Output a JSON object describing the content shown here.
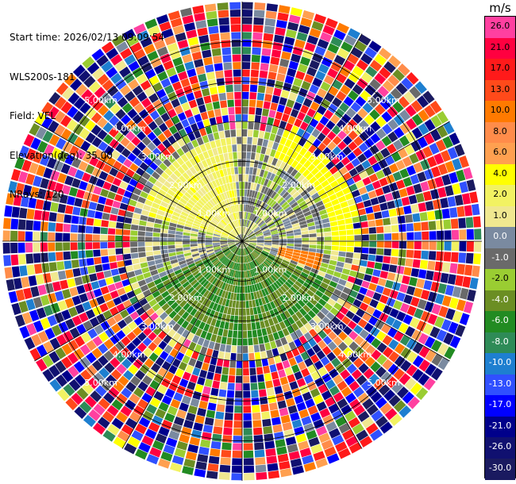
{
  "info": {
    "start_time": "Start time: 2026/02/13 09:09:54",
    "instrument": "WLS200s-181",
    "field": "Field: VEL",
    "elevation": "Elevation(deg): 35.00",
    "nrays": "NRays: 120"
  },
  "chart_data": {
    "type": "heatmap",
    "projection": "polar-ppi",
    "field": "VEL",
    "units": "m/s",
    "rays": 120,
    "elevation_deg": 35.0,
    "max_range_km": 6.0,
    "range_rings_km": [
      1.0,
      2.0,
      3.0,
      4.0,
      5.0
    ],
    "ring_labels": [
      "1.00km",
      "2.00km",
      "3.00km",
      "4.00km",
      "5.00km"
    ],
    "spokes_deg": [
      0,
      30,
      60,
      90,
      120,
      150,
      180,
      210,
      240,
      270,
      300,
      330
    ],
    "regions": [
      {
        "description": "north sector positive",
        "value_ms": 3.0,
        "r_km": [
          0.2,
          2.6
        ],
        "az_deg": [
          285,
          355
        ]
      },
      {
        "description": "northeast orange band",
        "value_ms": 5.0,
        "r_km": [
          2.2,
          3.1
        ],
        "az_deg": [
          20,
          95
        ]
      },
      {
        "description": "east gray",
        "value_ms": 0.0,
        "r_km": [
          0.3,
          2.0
        ],
        "az_deg": [
          60,
          100
        ]
      },
      {
        "description": "east red gust",
        "value_ms": 12.0,
        "r_km": [
          1.0,
          2.0
        ],
        "az_deg": [
          98,
          112
        ]
      },
      {
        "description": "south negative",
        "value_ms": -4.0,
        "r_km": [
          0.2,
          2.6
        ],
        "az_deg": [
          115,
          245
        ]
      },
      {
        "description": "west gray",
        "value_ms": 0.0,
        "r_km": [
          0.4,
          2.6
        ],
        "az_deg": [
          245,
          290
        ]
      }
    ],
    "noise_beyond_km": 2.8,
    "colorbar": {
      "title": "m/s",
      "ticks": [
        "26.0",
        "21.0",
        "17.0",
        "13.0",
        "10.0",
        "8.0",
        "6.0",
        "4.0",
        "2.0",
        "1.0",
        "0.0",
        "-1.0",
        "-2.0",
        "-4.0",
        "-6.0",
        "-8.0",
        "-10.0",
        "-13.0",
        "-17.0",
        "-21.0",
        "-26.0",
        "-30.0"
      ],
      "colors": [
        "#ff40a0",
        "#ff0040",
        "#ff1a1a",
        "#ff4a1a",
        "#ff7a00",
        "#ff8c4a",
        "#ffa050",
        "#ffff00",
        "#f2f262",
        "#f0e890",
        "#7a8aa0",
        "#6a6a6a",
        "#9acd32",
        "#6b8e23",
        "#228b22",
        "#2e8b57",
        "#1e7fd0",
        "#3050ff",
        "#0000ff",
        "#00008b",
        "#101070",
        "#1a1a60"
      ]
    }
  }
}
